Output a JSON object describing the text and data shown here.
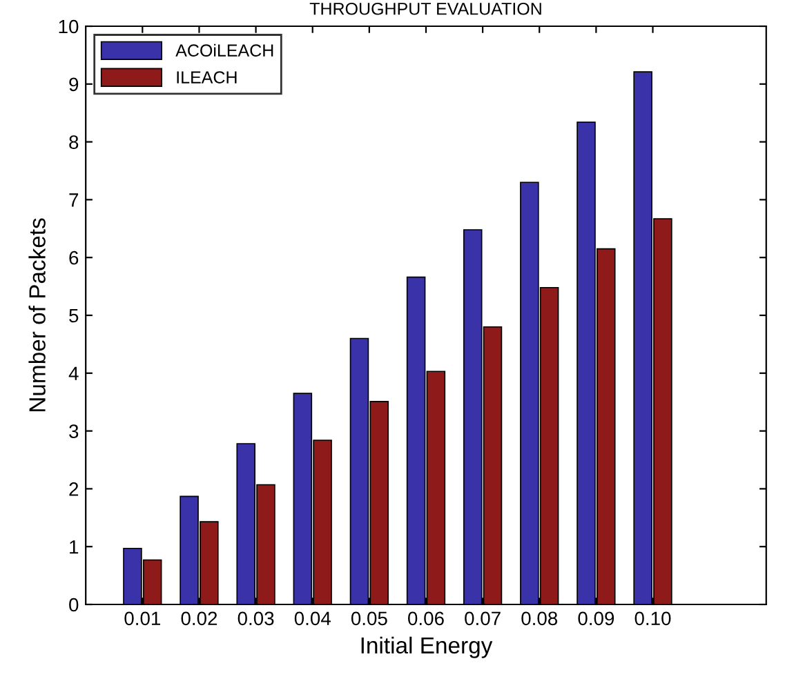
{
  "chart_data": {
    "type": "bar",
    "title": "THROUGHPUT EVALUATION",
    "xlabel": "Initial Energy",
    "ylabel": "Number of Packets",
    "x": [
      0.01,
      0.02,
      0.03,
      0.04,
      0.05,
      0.06,
      0.07,
      0.08,
      0.09,
      0.1
    ],
    "series": [
      {
        "name": "ACOiLEACH",
        "color": "#3a32a8",
        "values": [
          0.97,
          1.87,
          2.78,
          3.65,
          4.6,
          5.66,
          6.48,
          7.3,
          8.34,
          9.21
        ]
      },
      {
        "name": "ILEACH",
        "color": "#8e1a1a",
        "values": [
          0.77,
          1.43,
          2.07,
          2.84,
          3.51,
          4.03,
          4.8,
          5.48,
          6.15,
          6.67
        ]
      }
    ],
    "xlim": [
      0,
      0.12
    ],
    "xticks": [
      {
        "value": 0.01,
        "label": "0.01"
      },
      {
        "value": 0.02,
        "label": "0.02"
      },
      {
        "value": 0.03,
        "label": "0.03"
      },
      {
        "value": 0.04,
        "label": "0.04"
      },
      {
        "value": 0.05,
        "label": "0.05"
      },
      {
        "value": 0.06,
        "label": "0.06"
      },
      {
        "value": 0.07,
        "label": "0.07"
      },
      {
        "value": 0.08,
        "label": "0.08"
      },
      {
        "value": 0.09,
        "label": "0.09"
      },
      {
        "value": 0.1,
        "label": "0.10"
      }
    ],
    "ylim": [
      0,
      10
    ],
    "yticks": [
      0,
      1,
      2,
      3,
      4,
      5,
      6,
      7,
      8,
      9,
      10
    ],
    "legend": "top left",
    "grid": false
  }
}
